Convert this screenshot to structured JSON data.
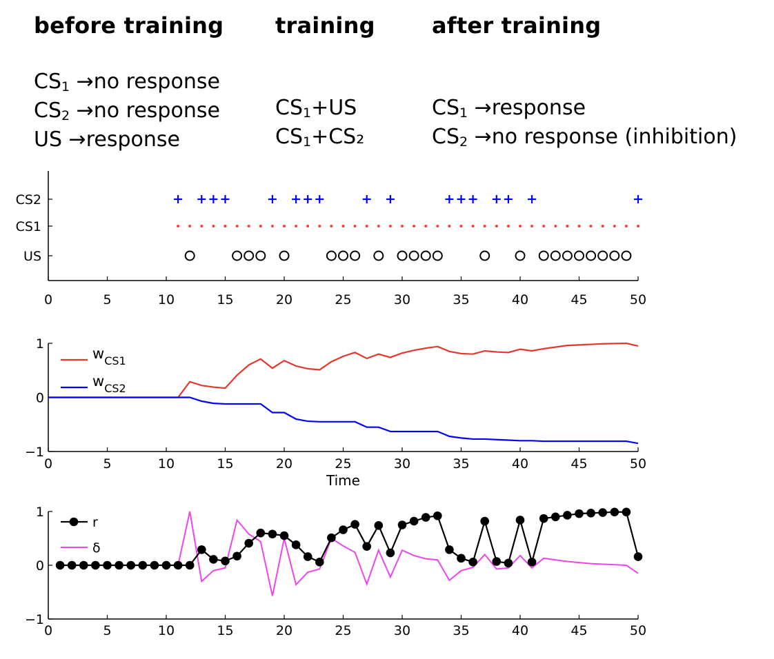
{
  "header": {
    "columns": [
      {
        "title": "before training",
        "lines": [
          {
            "a": "CS",
            "sub": "1",
            "b": " →no response"
          },
          {
            "a": "CS",
            "sub": "2",
            "b": " →no response"
          },
          {
            "a": "US",
            "sub": "",
            "b": " →response"
          }
        ]
      },
      {
        "title": "training",
        "lines": [
          {
            "a": "CS",
            "sub": "1",
            "b": "+US"
          },
          {
            "a": "CS",
            "sub": "1",
            "b": "+CS₂"
          }
        ]
      },
      {
        "title": "after training",
        "lines": [
          {
            "a": "CS",
            "sub": "1",
            "b": " →response"
          },
          {
            "a": "CS",
            "sub": "2",
            "b": " →no response (inhibition)"
          }
        ]
      }
    ]
  },
  "chart_data": [
    {
      "type": "scatter",
      "title": "",
      "xlabel": "",
      "xlim": [
        0,
        50
      ],
      "xticks": [
        0,
        5,
        10,
        15,
        20,
        25,
        30,
        35,
        40,
        45,
        50
      ],
      "ytick_labels": [
        "CS2",
        "CS1",
        "US"
      ],
      "series": [
        {
          "name": "CS2",
          "marker": "+",
          "color": "#0000ff",
          "x": [
            11,
            13,
            14,
            15,
            19,
            21,
            22,
            23,
            27,
            29,
            34,
            35,
            36,
            38,
            39,
            41,
            50
          ]
        },
        {
          "name": "CS1",
          "marker": "dot",
          "color": "#ff3b30",
          "x": [
            11,
            12,
            13,
            14,
            15,
            16,
            17,
            18,
            19,
            20,
            21,
            22,
            23,
            24,
            25,
            26,
            27,
            28,
            29,
            30,
            31,
            32,
            33,
            34,
            35,
            36,
            37,
            38,
            39,
            40,
            41,
            42,
            43,
            44,
            45,
            46,
            47,
            48,
            49,
            50
          ]
        },
        {
          "name": "US",
          "marker": "o",
          "color": "#000000",
          "x": [
            12,
            16,
            17,
            18,
            20,
            24,
            25,
            26,
            28,
            30,
            31,
            32,
            33,
            37,
            40,
            42,
            43,
            44,
            45,
            46,
            47,
            48,
            49
          ]
        }
      ]
    },
    {
      "type": "line",
      "title": "",
      "xlabel": "Time",
      "xlim": [
        0,
        50
      ],
      "ylim": [
        -1,
        1
      ],
      "xticks": [
        0,
        5,
        10,
        15,
        20,
        25,
        30,
        35,
        40,
        45,
        50
      ],
      "yticks": [
        -1,
        0,
        1
      ],
      "x": [
        0,
        1,
        2,
        3,
        4,
        5,
        6,
        7,
        8,
        9,
        10,
        11,
        12,
        13,
        14,
        15,
        16,
        17,
        18,
        19,
        20,
        21,
        22,
        23,
        24,
        25,
        26,
        27,
        28,
        29,
        30,
        31,
        32,
        33,
        34,
        35,
        36,
        37,
        38,
        39,
        40,
        41,
        42,
        43,
        44,
        45,
        46,
        47,
        48,
        49,
        50
      ],
      "legend": {
        "position": "top-left"
      },
      "series": [
        {
          "name": "w",
          "name_sub": "CS1",
          "color": "#e8352a",
          "values": [
            0,
            0,
            0,
            0,
            0,
            0,
            0,
            0,
            0,
            0,
            0,
            0,
            0.29,
            0.22,
            0.19,
            0.17,
            0.41,
            0.6,
            0.71,
            0.54,
            0.68,
            0.58,
            0.53,
            0.51,
            0.66,
            0.76,
            0.83,
            0.72,
            0.8,
            0.74,
            0.82,
            0.87,
            0.91,
            0.94,
            0.85,
            0.81,
            0.8,
            0.86,
            0.84,
            0.83,
            0.89,
            0.86,
            0.9,
            0.93,
            0.96,
            0.97,
            0.98,
            0.99,
            0.995,
            1.0,
            0.95
          ]
        },
        {
          "name": "w",
          "name_sub": "CS2",
          "color": "#0000ff",
          "values": [
            0,
            0,
            0,
            0,
            0,
            0,
            0,
            0,
            0,
            0,
            0,
            0,
            0,
            -0.07,
            -0.11,
            -0.12,
            -0.12,
            -0.12,
            -0.12,
            -0.28,
            -0.28,
            -0.4,
            -0.44,
            -0.45,
            -0.45,
            -0.45,
            -0.45,
            -0.55,
            -0.55,
            -0.63,
            -0.63,
            -0.63,
            -0.63,
            -0.63,
            -0.72,
            -0.75,
            -0.77,
            -0.77,
            -0.78,
            -0.79,
            -0.8,
            -0.8,
            -0.81,
            -0.81,
            -0.81,
            -0.81,
            -0.81,
            -0.81,
            -0.81,
            -0.81,
            -0.85
          ]
        }
      ]
    },
    {
      "type": "line",
      "title": "",
      "xlabel": "",
      "xlim": [
        0,
        50
      ],
      "ylim": [
        -1,
        1
      ],
      "xticks": [
        0,
        5,
        10,
        15,
        20,
        25,
        30,
        35,
        40,
        45,
        50
      ],
      "yticks": [
        -1,
        0,
        1
      ],
      "legend": {
        "position": "top-left"
      },
      "series": [
        {
          "name": "r",
          "color": "#000000",
          "marker": "filled-circle",
          "x": [
            1,
            2,
            3,
            4,
            5,
            6,
            7,
            8,
            9,
            10,
            11,
            12,
            13,
            14,
            15,
            16,
            17,
            18,
            19,
            20,
            21,
            22,
            23,
            24,
            25,
            26,
            27,
            28,
            29,
            30,
            31,
            32,
            33,
            34,
            35,
            36,
            37,
            38,
            39,
            40,
            41,
            42,
            43,
            44,
            45,
            46,
            47,
            48,
            49,
            50
          ],
          "values": [
            0,
            0,
            0,
            0,
            0,
            0,
            0,
            0,
            0,
            0,
            0,
            0,
            0.29,
            0.11,
            0.08,
            0.17,
            0.41,
            0.6,
            0.58,
            0.55,
            0.38,
            0.16,
            0.06,
            0.51,
            0.66,
            0.76,
            0.35,
            0.74,
            0.23,
            0.75,
            0.82,
            0.89,
            0.92,
            0.29,
            0.13,
            0.06,
            0.82,
            0.07,
            0.04,
            0.84,
            0.06,
            0.87,
            0.9,
            0.93,
            0.96,
            0.97,
            0.98,
            0.99,
            0.99,
            0.16
          ]
        },
        {
          "name": "δ",
          "color": "#ee44ee",
          "x": [
            1,
            2,
            3,
            4,
            5,
            6,
            7,
            8,
            9,
            10,
            11,
            12,
            13,
            14,
            15,
            16,
            17,
            18,
            19,
            20,
            21,
            22,
            23,
            24,
            25,
            26,
            27,
            28,
            29,
            30,
            31,
            32,
            33,
            34,
            35,
            36,
            37,
            38,
            39,
            40,
            41,
            42,
            43,
            44,
            45,
            46,
            47,
            48,
            49,
            50
          ],
          "values": [
            0,
            0,
            0,
            0,
            0,
            0,
            0,
            0,
            0,
            0,
            0,
            1.0,
            -0.3,
            -0.1,
            -0.05,
            0.84,
            0.58,
            0.44,
            -0.57,
            0.5,
            -0.36,
            -0.13,
            -0.07,
            0.5,
            0.36,
            0.24,
            -0.35,
            0.28,
            -0.22,
            0.28,
            0.18,
            0.12,
            0.1,
            -0.28,
            -0.1,
            -0.04,
            0.2,
            -0.07,
            -0.05,
            0.18,
            -0.05,
            0.13,
            0.1,
            0.07,
            0.05,
            0.03,
            0.02,
            0.01,
            0.0,
            -0.15
          ]
        }
      ]
    }
  ]
}
